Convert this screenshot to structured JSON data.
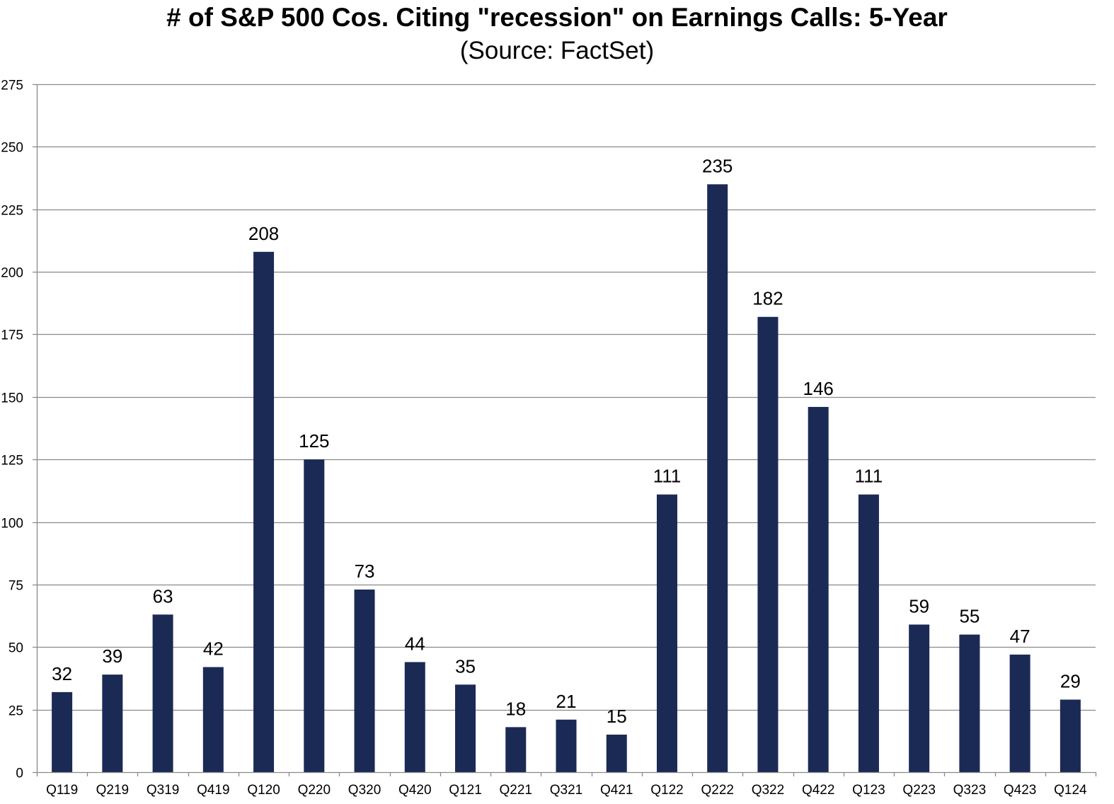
{
  "chart_data": {
    "type": "bar",
    "title": "# of S&P 500 Cos. Citing \"recession\" on Earnings Calls: 5-Year",
    "subtitle": "(Source: FactSet)",
    "xlabel": "",
    "ylabel": "",
    "categories": [
      "Q119",
      "Q219",
      "Q319",
      "Q419",
      "Q120",
      "Q220",
      "Q320",
      "Q420",
      "Q121",
      "Q221",
      "Q321",
      "Q421",
      "Q122",
      "Q222",
      "Q322",
      "Q422",
      "Q123",
      "Q223",
      "Q323",
      "Q423",
      "Q124"
    ],
    "values": [
      32,
      39,
      63,
      42,
      208,
      125,
      73,
      44,
      35,
      18,
      21,
      15,
      111,
      235,
      182,
      146,
      111,
      59,
      55,
      47,
      29
    ],
    "ylim": [
      0,
      275
    ],
    "yticks": [
      0,
      25,
      50,
      75,
      100,
      125,
      150,
      175,
      200,
      225,
      250,
      275
    ],
    "grid": true,
    "legend": "none",
    "data_labels": true,
    "colors": {
      "bar": "#1b2a55",
      "grid": "#8a8a8a",
      "axis": "#8a8a8a",
      "text": "#000000"
    }
  }
}
